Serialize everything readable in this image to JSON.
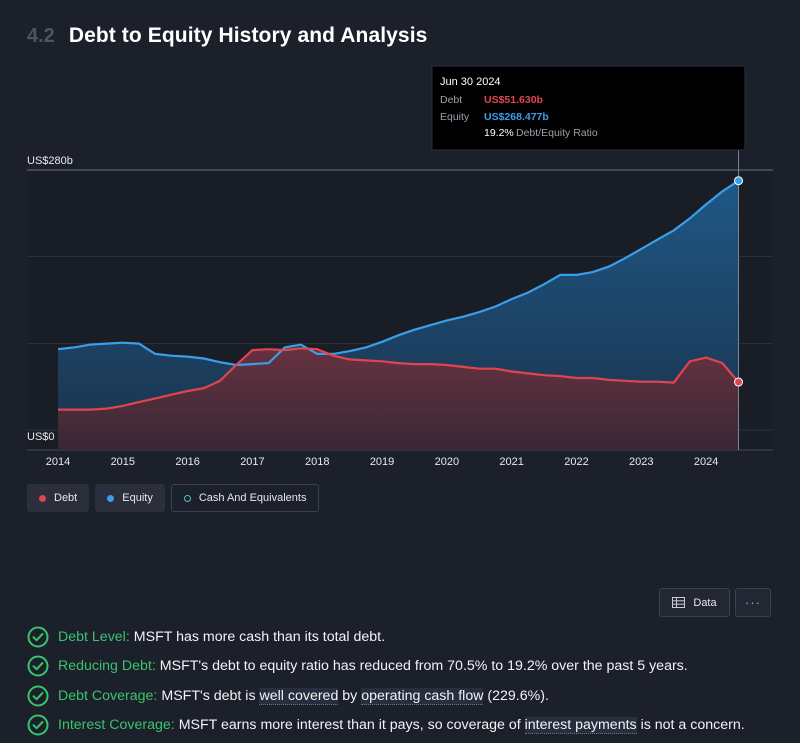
{
  "section": {
    "number": "4.2",
    "title": "Debt to Equity History and Analysis"
  },
  "chart_data": {
    "type": "area",
    "y_unit_label_top": "US$280b",
    "y_unit_label_bottom": "US$0",
    "ylim": [
      0,
      280
    ],
    "xlim": [
      2014,
      2024.6
    ],
    "x_ticks": [
      "2014",
      "2015",
      "2016",
      "2017",
      "2018",
      "2019",
      "2020",
      "2021",
      "2022",
      "2023",
      "2024"
    ],
    "series": [
      {
        "name": "Equity",
        "color": "#3b9ee8",
        "x": [
          2014.0,
          2014.25,
          2014.5,
          2014.75,
          2015.0,
          2015.25,
          2015.5,
          2015.75,
          2016.0,
          2016.25,
          2016.5,
          2016.75,
          2017.0,
          2017.25,
          2017.5,
          2017.75,
          2018.0,
          2018.25,
          2018.5,
          2018.75,
          2019.0,
          2019.25,
          2019.5,
          2019.75,
          2020.0,
          2020.25,
          2020.5,
          2020.75,
          2021.0,
          2021.25,
          2021.5,
          2021.75,
          2022.0,
          2022.25,
          2022.5,
          2022.75,
          2023.0,
          2023.25,
          2023.5,
          2023.75,
          2024.0,
          2024.25,
          2024.5
        ],
        "values": [
          87,
          89,
          92,
          93,
          94,
          93,
          82,
          80,
          79,
          77,
          73,
          70,
          71,
          72,
          89,
          92,
          82,
          82,
          85,
          89,
          95,
          102,
          108,
          113,
          118,
          122,
          127,
          133,
          141,
          148,
          157,
          167,
          167,
          170,
          176,
          185,
          195,
          205,
          215,
          228,
          243,
          257,
          268.477
        ]
      },
      {
        "name": "Debt",
        "color": "#e0454f",
        "x": [
          2014.0,
          2014.25,
          2014.5,
          2014.75,
          2015.0,
          2015.25,
          2015.5,
          2015.75,
          2016.0,
          2016.25,
          2016.5,
          2016.75,
          2017.0,
          2017.25,
          2017.5,
          2017.75,
          2018.0,
          2018.25,
          2018.5,
          2018.75,
          2019.0,
          2019.25,
          2019.5,
          2019.75,
          2020.0,
          2020.25,
          2020.5,
          2020.75,
          2021.0,
          2021.25,
          2021.5,
          2021.75,
          2022.0,
          2022.25,
          2022.5,
          2022.75,
          2023.0,
          2023.25,
          2023.5,
          2023.75,
          2024.0,
          2024.25,
          2024.5
        ],
        "values": [
          22,
          22,
          22,
          23,
          26,
          30,
          34,
          38,
          42,
          45,
          53,
          70,
          86,
          87,
          86,
          88,
          87,
          80,
          76,
          75,
          74,
          72,
          71,
          71,
          70,
          68,
          66,
          66,
          63,
          61,
          59,
          58,
          56,
          56,
          54,
          53,
          52,
          52,
          51,
          74,
          78,
          72,
          51.63
        ]
      },
      {
        "name": "Cash And Equivalents",
        "color": "#3fc6c6",
        "x": [],
        "values": []
      }
    ],
    "tooltip": {
      "date": "Jun 30 2024",
      "debt_label": "Debt",
      "debt_value": "US$51.630b",
      "equity_label": "Equity",
      "equity_value": "US$268.477b",
      "ratio_value": "19.2%",
      "ratio_label": "Debt/Equity Ratio"
    },
    "legend": [
      "Debt",
      "Equity",
      "Cash And Equivalents"
    ],
    "grid": true
  },
  "toolbar": {
    "data_label": "Data",
    "more_label": "···"
  },
  "checks": [
    {
      "label": "Debt Level:",
      "text": "MSFT has more cash than its total debt."
    },
    {
      "label": "Reducing Debt:",
      "text": "MSFT's debt to equity ratio has reduced from 70.5% to 19.2% over the past 5 years."
    },
    {
      "label": "Debt Coverage:",
      "pre": "MSFT's debt is ",
      "hl1": "well covered",
      "mid": " by ",
      "hl2": "operating cash flow",
      "post": " (229.6%)."
    },
    {
      "label": "Interest Coverage:",
      "pre": "MSFT earns more interest than it pays, so coverage of ",
      "hl1": "interest payments",
      "post": " is not a concern."
    }
  ],
  "colors": {
    "green": "#39c46c",
    "debt": "#e0454f",
    "equity": "#3b9ee8",
    "cash": "#3fc6c6"
  }
}
